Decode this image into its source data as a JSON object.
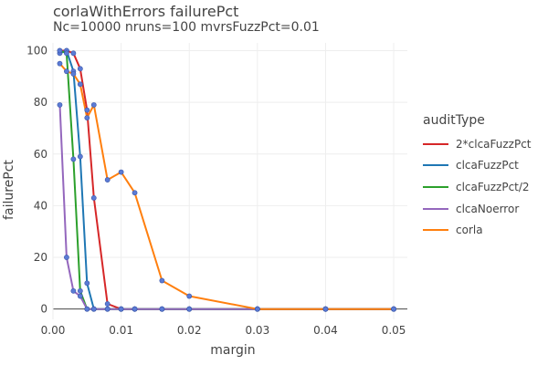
{
  "chart_data": {
    "type": "line",
    "title": "corlaWithErrors failurePct",
    "subtitle": "Nc=10000 nruns=100 mvrsFuzzPct=0.01",
    "xlabel": "margin",
    "ylabel": "failurePct",
    "xlim": [
      0,
      0.052
    ],
    "ylim": [
      -4,
      103
    ],
    "xticks": [
      0,
      0.01,
      0.02,
      0.03,
      0.04,
      0.05
    ],
    "xtick_labels": [
      "0.00",
      "0.01",
      "0.02",
      "0.03",
      "0.04",
      "0.05"
    ],
    "yticks": [
      0,
      20,
      40,
      60,
      80,
      100
    ],
    "ytick_labels": [
      "0",
      "20",
      "40",
      "60",
      "80",
      "100"
    ],
    "grid": true,
    "legend_position": "right",
    "marker_color": "#5b7bd5",
    "legend": {
      "title": "auditType"
    },
    "series": [
      {
        "name": "2*clcaFuzzPct",
        "color": "#d62728",
        "x": [
          0.001,
          0.002,
          0.003,
          0.004,
          0.005,
          0.006,
          0.008,
          0.01,
          0.012,
          0.016,
          0.02,
          0.03,
          0.04,
          0.05
        ],
        "y": [
          100,
          100,
          99,
          93,
          77,
          43,
          2,
          0,
          0,
          0,
          0,
          0,
          0,
          0
        ]
      },
      {
        "name": "clcaFuzzPct",
        "color": "#1f77b4",
        "x": [
          0.001,
          0.002,
          0.003,
          0.004,
          0.005,
          0.006,
          0.008,
          0.01,
          0.012,
          0.016,
          0.02,
          0.03,
          0.04,
          0.05
        ],
        "y": [
          99,
          100,
          92,
          59,
          10,
          0,
          0,
          0,
          0,
          0,
          0,
          0,
          0,
          0
        ]
      },
      {
        "name": "clcaFuzzPct/2",
        "color": "#2ca02c",
        "x": [
          0.001,
          0.002,
          0.003,
          0.004,
          0.005,
          0.006,
          0.008,
          0.01,
          0.012,
          0.016,
          0.02,
          0.03,
          0.04,
          0.05
        ],
        "y": [
          100,
          99,
          58,
          7,
          0,
          0,
          0,
          0,
          0,
          0,
          0,
          0,
          0,
          0
        ]
      },
      {
        "name": "clcaNoerror",
        "color": "#9467bd",
        "x": [
          0.001,
          0.002,
          0.003,
          0.004,
          0.005,
          0.006,
          0.008,
          0.01,
          0.012,
          0.016,
          0.02,
          0.03,
          0.04,
          0.05
        ],
        "y": [
          79,
          20,
          7,
          5,
          0,
          0,
          0,
          0,
          0,
          0,
          0,
          0,
          0,
          0
        ]
      },
      {
        "name": "corla",
        "color": "#ff7f0e",
        "x": [
          0.001,
          0.002,
          0.003,
          0.004,
          0.005,
          0.006,
          0.008,
          0.01,
          0.012,
          0.016,
          0.02,
          0.03,
          0.04,
          0.05
        ],
        "y": [
          95,
          92,
          91,
          87,
          74,
          79,
          50,
          53,
          45,
          11,
          5,
          0,
          0,
          0
        ]
      }
    ]
  }
}
